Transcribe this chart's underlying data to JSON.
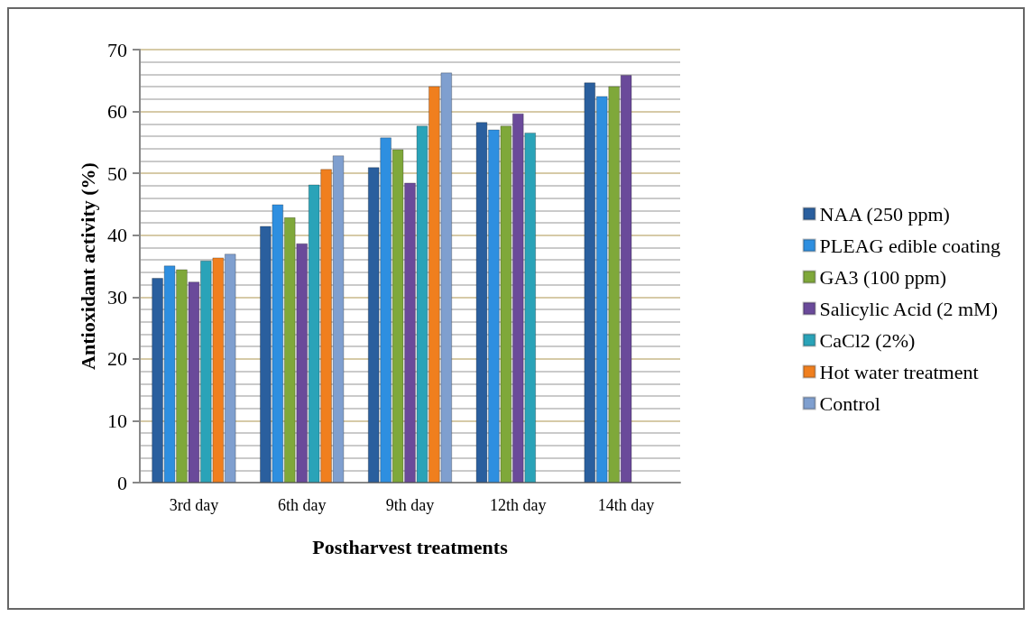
{
  "chart_data": {
    "type": "bar",
    "xlabel": "Postharvest treatments",
    "ylabel": "Antioxidant activity (%)",
    "categories": [
      "3rd day",
      "6th day",
      "9th day",
      "12th day",
      "14th day"
    ],
    "series": [
      {
        "name": "NAA (250 ppm)",
        "color": "#2a5f9e",
        "values": [
          33.1,
          41.5,
          51.0,
          58.3,
          64.7
        ]
      },
      {
        "name": "PLEAG edible coating",
        "color": "#2e8fe0",
        "values": [
          35.1,
          45.0,
          55.8,
          57.1,
          62.5
        ]
      },
      {
        "name": "GA3 (100 ppm)",
        "color": "#7fa83a",
        "values": [
          34.5,
          42.9,
          53.9,
          57.7,
          64.1
        ]
      },
      {
        "name": "Salicylic Acid (2 mM)",
        "color": "#6a4a9a",
        "values": [
          32.5,
          38.7,
          48.5,
          59.7,
          65.9
        ]
      },
      {
        "name": "CaCl2 (2%)",
        "color": "#2aa3b8",
        "values": [
          35.9,
          48.2,
          57.7,
          56.6,
          null
        ]
      },
      {
        "name": "Hot water treatment",
        "color": "#f07f1e",
        "values": [
          36.4,
          50.7,
          64.1,
          null,
          null
        ]
      },
      {
        "name": "Control",
        "color": "#7f9fcf",
        "values": [
          37.0,
          52.9,
          66.3,
          null,
          null
        ]
      }
    ],
    "ylim": [
      0,
      70
    ],
    "yticks": [
      0,
      10,
      20,
      30,
      40,
      50,
      60,
      70
    ],
    "grid": "y",
    "legend": "right"
  }
}
